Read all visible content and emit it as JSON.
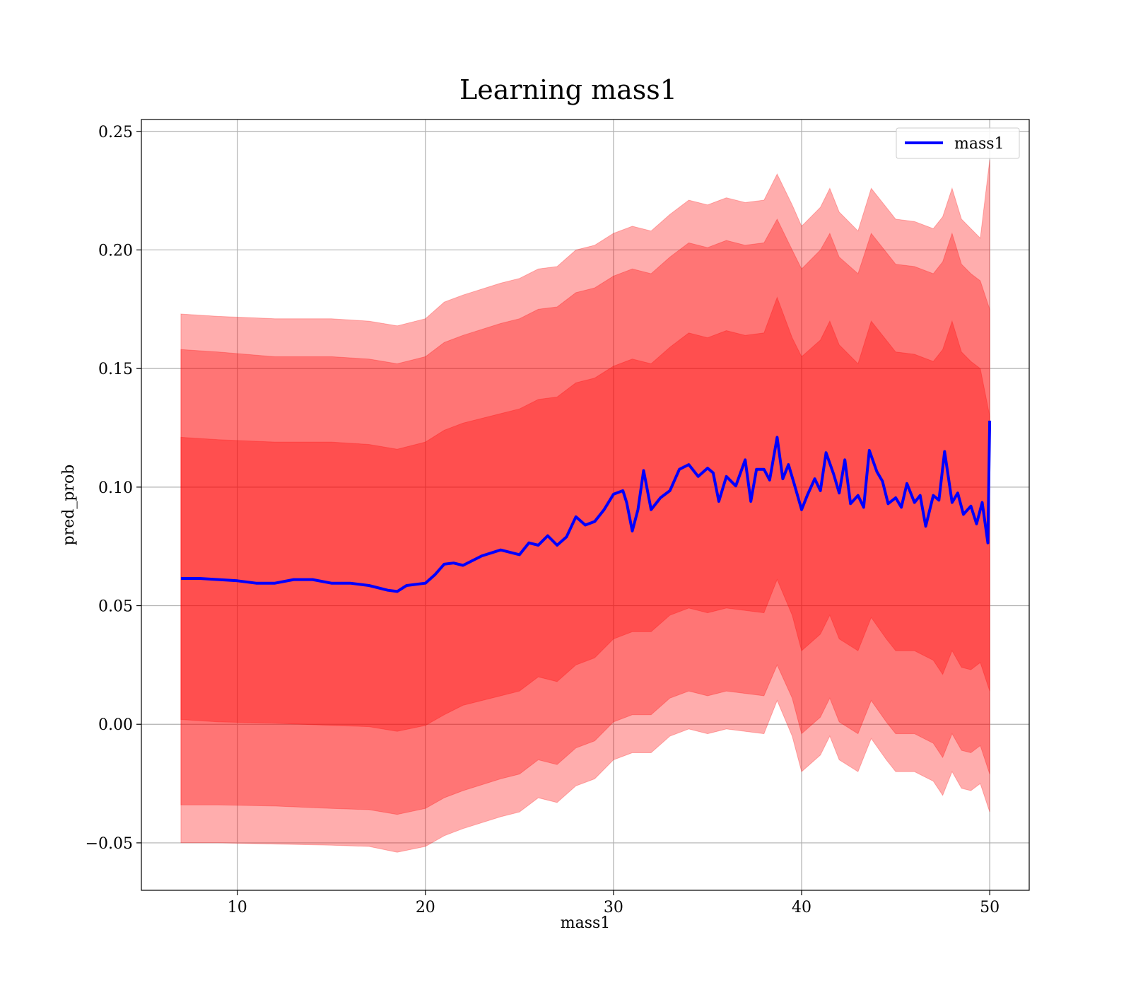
{
  "chart_data": {
    "type": "line",
    "title": "Learning mass1",
    "xlabel": "mass1",
    "ylabel": "pred_prob",
    "xlim": [
      4.9,
      52.1
    ],
    "ylim": [
      -0.07,
      0.255
    ],
    "xticks": [
      10,
      20,
      30,
      40,
      50
    ],
    "xtick_labels": [
      "10",
      "20",
      "30",
      "40",
      "50"
    ],
    "yticks": [
      -0.05,
      0.0,
      0.05,
      0.1,
      0.15,
      0.2,
      0.25
    ],
    "ytick_labels": [
      "−0.05",
      "0.00",
      "0.05",
      "0.10",
      "0.15",
      "0.20",
      "0.25"
    ],
    "grid": true,
    "legend_position": "top-right",
    "colors": {
      "line": "#0000ff",
      "band": "#ff0000",
      "grid": "#b0b0b0"
    },
    "band_opacity": 0.32,
    "series": [
      {
        "name": "mass1",
        "x": [
          7,
          8,
          9,
          10,
          11,
          12,
          13,
          14,
          15,
          16,
          17,
          18,
          18.5,
          19,
          20,
          20.5,
          21,
          21.5,
          22,
          23,
          24,
          25,
          25.5,
          26,
          26.5,
          27,
          27.5,
          28,
          28.5,
          29,
          29.5,
          30,
          30.5,
          30.7,
          31,
          31.3,
          31.6,
          32,
          32.5,
          33,
          33.5,
          34,
          34.5,
          35,
          35.3,
          35.6,
          36,
          36.5,
          37,
          37.3,
          37.6,
          38,
          38.3,
          38.7,
          39,
          39.3,
          39.6,
          40,
          40.3,
          40.7,
          41,
          41.3,
          41.7,
          42,
          42.3,
          42.6,
          43,
          43.3,
          43.6,
          44,
          44.3,
          44.6,
          45,
          45.3,
          45.6,
          46,
          46.3,
          46.6,
          47,
          47.3,
          47.6,
          48,
          48.3,
          48.6,
          49,
          49.3,
          49.6,
          49.9,
          50
        ],
        "values": [
          0.0615,
          0.0615,
          0.061,
          0.0605,
          0.0595,
          0.0595,
          0.061,
          0.061,
          0.0595,
          0.0595,
          0.0585,
          0.0565,
          0.056,
          0.0585,
          0.0595,
          0.063,
          0.0675,
          0.068,
          0.067,
          0.071,
          0.0735,
          0.0715,
          0.0765,
          0.0755,
          0.0795,
          0.0755,
          0.079,
          0.0875,
          0.084,
          0.0855,
          0.0905,
          0.097,
          0.0985,
          0.0935,
          0.0815,
          0.0905,
          0.107,
          0.0905,
          0.0955,
          0.0985,
          0.1075,
          0.1095,
          0.1045,
          0.108,
          0.106,
          0.094,
          0.1045,
          0.1005,
          0.1115,
          0.094,
          0.1075,
          0.1075,
          0.103,
          0.121,
          0.1035,
          0.1095,
          0.1015,
          0.0905,
          0.0965,
          0.1035,
          0.0985,
          0.1145,
          0.1055,
          0.0975,
          0.1115,
          0.093,
          0.0965,
          0.0915,
          0.1155,
          0.1065,
          0.1025,
          0.093,
          0.0955,
          0.0915,
          0.1015,
          0.0935,
          0.0965,
          0.0835,
          0.0965,
          0.0945,
          0.115,
          0.0935,
          0.0975,
          0.0885,
          0.092,
          0.0845,
          0.0935,
          0.0765,
          0.128
        ]
      }
    ],
    "bands": [
      {
        "x": [
          7,
          9,
          12,
          15,
          17,
          18.5,
          20,
          21,
          22,
          24,
          25,
          26,
          27,
          28,
          29,
          30,
          31,
          32,
          33,
          34,
          35,
          36,
          37,
          38,
          38.7,
          39.5,
          40,
          41,
          41.5,
          42,
          43,
          43.7,
          44.5,
          45,
          46,
          47,
          47.5,
          48,
          48.5,
          49,
          49.5,
          50
        ],
        "upper": [
          0.173,
          0.172,
          0.171,
          0.171,
          0.17,
          0.168,
          0.171,
          0.178,
          0.181,
          0.186,
          0.188,
          0.192,
          0.193,
          0.2,
          0.202,
          0.207,
          0.21,
          0.208,
          0.215,
          0.221,
          0.219,
          0.222,
          0.22,
          0.221,
          0.232,
          0.219,
          0.21,
          0.218,
          0.226,
          0.216,
          0.208,
          0.226,
          0.218,
          0.213,
          0.212,
          0.209,
          0.214,
          0.226,
          0.213,
          0.209,
          0.205,
          0.238
        ],
        "lower": [
          -0.05,
          -0.05,
          -0.0505,
          -0.051,
          -0.0515,
          -0.054,
          -0.0515,
          -0.047,
          -0.044,
          -0.039,
          -0.037,
          -0.031,
          -0.033,
          -0.026,
          -0.023,
          -0.015,
          -0.012,
          -0.012,
          -0.005,
          -0.002,
          -0.004,
          -0.002,
          -0.003,
          -0.004,
          0.01,
          -0.005,
          -0.02,
          -0.013,
          -0.005,
          -0.015,
          -0.02,
          -0.006,
          -0.015,
          -0.02,
          -0.02,
          -0.024,
          -0.03,
          -0.02,
          -0.027,
          -0.028,
          -0.025,
          -0.037
        ]
      },
      {
        "x": [
          7,
          9,
          12,
          15,
          17,
          18.5,
          20,
          21,
          22,
          24,
          25,
          26,
          27,
          28,
          29,
          30,
          31,
          32,
          33,
          34,
          35,
          36,
          37,
          38,
          38.7,
          39.5,
          40,
          41,
          41.5,
          42,
          43,
          43.7,
          44.5,
          45,
          46,
          47,
          47.5,
          48,
          48.5,
          49,
          49.5,
          50
        ],
        "upper": [
          0.158,
          0.157,
          0.155,
          0.155,
          0.154,
          0.152,
          0.155,
          0.161,
          0.164,
          0.169,
          0.171,
          0.175,
          0.176,
          0.182,
          0.184,
          0.189,
          0.192,
          0.19,
          0.197,
          0.203,
          0.201,
          0.204,
          0.202,
          0.203,
          0.213,
          0.2,
          0.192,
          0.2,
          0.207,
          0.197,
          0.19,
          0.207,
          0.199,
          0.194,
          0.193,
          0.19,
          0.195,
          0.207,
          0.194,
          0.19,
          0.187,
          0.175
        ],
        "lower": [
          -0.034,
          -0.034,
          -0.0345,
          -0.0355,
          -0.036,
          -0.038,
          -0.0355,
          -0.031,
          -0.028,
          -0.023,
          -0.021,
          -0.015,
          -0.017,
          -0.01,
          -0.007,
          0.001,
          0.004,
          0.004,
          0.011,
          0.014,
          0.012,
          0.014,
          0.013,
          0.012,
          0.025,
          0.011,
          -0.004,
          0.003,
          0.011,
          0.001,
          -0.004,
          0.01,
          0.001,
          -0.004,
          -0.004,
          -0.008,
          -0.014,
          -0.004,
          -0.011,
          -0.012,
          -0.009,
          -0.021
        ]
      },
      {
        "x": [
          7,
          9,
          12,
          15,
          17,
          18.5,
          20,
          21,
          22,
          24,
          25,
          26,
          27,
          28,
          29,
          30,
          31,
          32,
          33,
          34,
          35,
          36,
          37,
          38,
          38.7,
          39.5,
          40,
          41,
          41.5,
          42,
          43,
          43.7,
          44.5,
          45,
          46,
          47,
          47.5,
          48,
          48.5,
          49,
          49.5,
          50
        ],
        "upper": [
          0.121,
          0.12,
          0.119,
          0.119,
          0.118,
          0.116,
          0.119,
          0.124,
          0.127,
          0.131,
          0.133,
          0.137,
          0.138,
          0.144,
          0.146,
          0.151,
          0.154,
          0.152,
          0.159,
          0.165,
          0.163,
          0.166,
          0.164,
          0.165,
          0.18,
          0.163,
          0.155,
          0.162,
          0.17,
          0.16,
          0.152,
          0.17,
          0.162,
          0.157,
          0.156,
          0.153,
          0.158,
          0.17,
          0.157,
          0.153,
          0.15,
          0.13
        ],
        "lower": [
          0.002,
          0.001,
          0.0005,
          -0.0005,
          -0.001,
          -0.003,
          -0.0005,
          0.004,
          0.008,
          0.012,
          0.014,
          0.02,
          0.018,
          0.025,
          0.028,
          0.036,
          0.039,
          0.039,
          0.046,
          0.049,
          0.047,
          0.049,
          0.048,
          0.047,
          0.061,
          0.046,
          0.031,
          0.038,
          0.046,
          0.036,
          0.031,
          0.045,
          0.036,
          0.031,
          0.031,
          0.027,
          0.021,
          0.031,
          0.024,
          0.023,
          0.026,
          0.014
        ]
      }
    ]
  }
}
